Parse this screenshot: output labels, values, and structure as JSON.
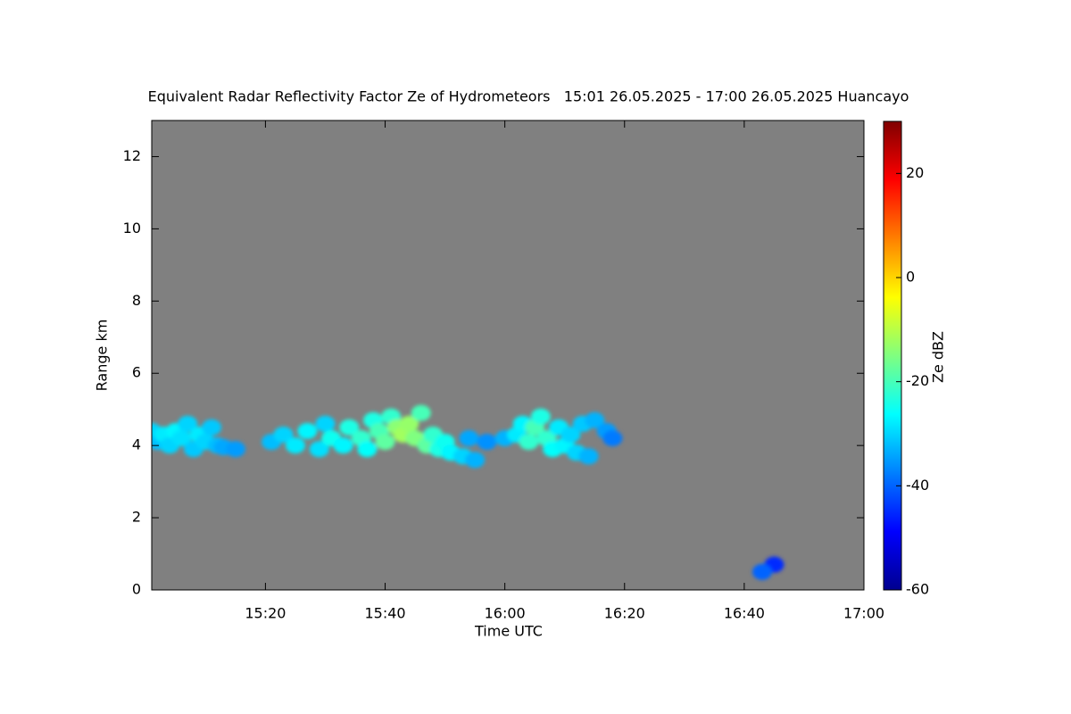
{
  "chart_data": {
    "type": "heatmap",
    "title": "Equivalent Radar Reflectivity Factor Ze of Hydrometeors   15:01 26.05.2025 - 17:00 26.05.2025 Huancayo",
    "x_label": "Time UTC",
    "y_label": "Range km",
    "colorbar_label": "Ze dBZ",
    "xlim": [
      901,
      1020
    ],
    "xticks": [
      {
        "value": 920,
        "label": "15:20"
      },
      {
        "value": 940,
        "label": "15:40"
      },
      {
        "value": 960,
        "label": "16:00"
      },
      {
        "value": 980,
        "label": "16:20"
      },
      {
        "value": 1000,
        "label": "16:40"
      },
      {
        "value": 1020,
        "label": "17:00"
      }
    ],
    "ylim": [
      0,
      13
    ],
    "yticks": [
      0,
      2,
      4,
      6,
      8,
      10,
      12
    ],
    "clim": [
      -60,
      30
    ],
    "cticks": [
      -60,
      -40,
      -20,
      0,
      20
    ],
    "colormap": "jet",
    "background": "#808080",
    "x": [
      901,
      902,
      903,
      904,
      905,
      906,
      907,
      908,
      909,
      910,
      911,
      912,
      913,
      915,
      921,
      923,
      925,
      927,
      929,
      930,
      931,
      933,
      934,
      936,
      937,
      938,
      939,
      940,
      941,
      942,
      943,
      944,
      945,
      946,
      947,
      948,
      949,
      950,
      951,
      953,
      955,
      954,
      957,
      960,
      962,
      963,
      964,
      965,
      966,
      967,
      968,
      969,
      970,
      971,
      972,
      973,
      974,
      975,
      977,
      978,
      1005,
      1003
    ],
    "y": [
      4.4,
      4.1,
      4.3,
      4.0,
      4.4,
      4.2,
      4.6,
      3.9,
      4.3,
      4.1,
      4.5,
      4.0,
      3.95,
      3.9,
      4.1,
      4.3,
      4.0,
      4.4,
      3.9,
      4.6,
      4.2,
      4.0,
      4.5,
      4.2,
      3.9,
      4.7,
      4.4,
      4.1,
      4.8,
      4.5,
      4.3,
      4.6,
      4.2,
      4.9,
      4.0,
      4.3,
      3.9,
      4.1,
      3.8,
      3.7,
      3.6,
      4.2,
      4.1,
      4.2,
      4.3,
      4.6,
      4.1,
      4.5,
      4.8,
      4.2,
      3.9,
      4.5,
      4.0,
      4.3,
      3.8,
      4.6,
      3.7,
      4.7,
      4.4,
      4.2,
      0.7,
      0.5
    ],
    "values": [
      -30,
      -32,
      -28,
      -30,
      -27,
      -29,
      -30,
      -31,
      -28,
      -30,
      -31,
      -32,
      -34,
      -35,
      -32,
      -30,
      -28,
      -27,
      -29,
      -30,
      -25,
      -27,
      -24,
      -22,
      -26,
      -24,
      -20,
      -18,
      -22,
      -14,
      -12,
      -13,
      -15,
      -20,
      -18,
      -22,
      -24,
      -25,
      -27,
      -30,
      -33,
      -34,
      -36,
      -33,
      -28,
      -27,
      -22,
      -20,
      -24,
      -22,
      -26,
      -28,
      -27,
      -30,
      -30,
      -31,
      -33,
      -33,
      -35,
      -38,
      -45,
      -40
    ]
  }
}
